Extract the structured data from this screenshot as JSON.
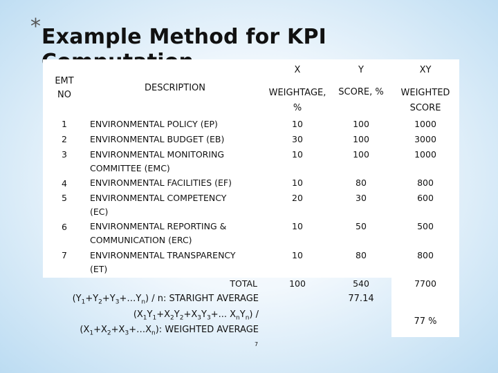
{
  "slide": {
    "star": "*",
    "title": "Example Method for KPI Computation",
    "page_number": "7"
  },
  "table": {
    "header_top": {
      "x": "X",
      "y": "Y",
      "xy": "XY"
    },
    "header": {
      "emt_line1": "EMT",
      "emt_line2": "NO",
      "description": "DESCRIPTION",
      "x_line1": "WEIGHTAGE,",
      "x_line2": "%",
      "y": "SCORE, %",
      "xy_line1": "WEIGHTED",
      "xy_line2": "SCORE"
    },
    "rows": [
      {
        "no": "1",
        "desc1": "ENVIRONMENTAL POLICY (EP)",
        "desc2": "",
        "x": "10",
        "y": "100",
        "xy": "1000"
      },
      {
        "no": "2",
        "desc1": "ENVIRONMENTAL BUDGET (EB)",
        "desc2": "",
        "x": "30",
        "y": "100",
        "xy": "3000"
      },
      {
        "no": "3",
        "desc1": "ENVIRONMENTAL MONITORING",
        "desc2": "COMMITTEE (EMC)",
        "x": "10",
        "y": "100",
        "xy": "1000"
      },
      {
        "no": "4",
        "desc1": "ENVIRONMENTAL FACILITIES (EF)",
        "desc2": "",
        "x": "10",
        "y": "80",
        "xy": "800"
      },
      {
        "no": "5",
        "desc1": "ENVIRONMENTAL COMPETENCY",
        "desc2": "(EC)",
        "x": "20",
        "y": "30",
        "xy": "600"
      },
      {
        "no": "6",
        "desc1": "ENVIRONMENTAL REPORTING &",
        "desc2": "COMMUNICATION (ERC)",
        "x": "10",
        "y": "50",
        "xy": "500"
      },
      {
        "no": "7",
        "desc1": "ENVIRONMENTAL TRANSPARENCY",
        "desc2": "(ET)",
        "x": "10",
        "y": "80",
        "xy": "800"
      }
    ],
    "total": {
      "label": "TOTAL",
      "x": "100",
      "y": "540",
      "xy": "7700"
    },
    "straight_average": {
      "p1": "(Y",
      "s1": "1",
      "p2": "+Y",
      "s2": "2",
      "p3": "+Y",
      "s3": "3",
      "p4": "+…Y",
      "s4": "n",
      "p5": ") / n: STARIGHT AVERAGE",
      "value": "77.14"
    },
    "weighted_average": {
      "l1_p1": "(X",
      "l1_s1": "1",
      "l1_p2": "Y",
      "l1_s2": "1",
      "l1_p3": "+X",
      "l1_s3": "2",
      "l1_p4": "Y",
      "l1_s4": "2",
      "l1_p5": "+X",
      "l1_s5": "3",
      "l1_p6": "Y",
      "l1_s6": "3",
      "l1_p7": "+... X",
      "l1_s7": "n",
      "l1_p8": "Y",
      "l1_s8": "n",
      "l1_p9": ") /",
      "l2_p1": "(X",
      "l2_s1": "1",
      "l2_p2": "+X",
      "l2_s2": "2",
      "l2_p3": "+X",
      "l2_s3": "3",
      "l2_p4": "+…X",
      "l2_s4": "n",
      "l2_p5": "): WEIGHTED AVERAGE",
      "value": "77 %"
    }
  }
}
